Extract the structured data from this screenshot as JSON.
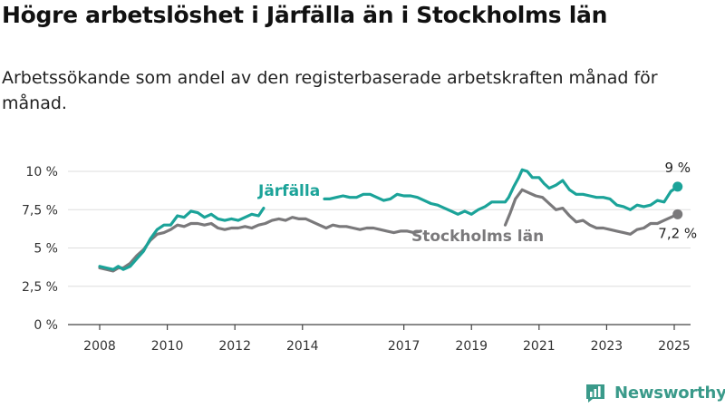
{
  "header": {
    "title": "Högre arbetslöshet i Järfälla än i Stockholms län",
    "subtitle": "Arbetssökande som andel av den registerbaserade arbetskraften månad för månad."
  },
  "brand": {
    "name": "Newsworthy"
  },
  "colors": {
    "jarfalla": "#1ba399",
    "stockholm": "#7a797b",
    "axis": "#444444",
    "grid": "#dddddd",
    "brand": "#3a9a8a"
  },
  "chart_data": {
    "type": "line",
    "title": "Högre arbetslöshet i Järfälla än i Stockholms län",
    "xlabel": "",
    "ylabel": "",
    "ylim": [
      0,
      10
    ],
    "xlim": [
      2007.5,
      2025.75
    ],
    "grid": true,
    "legend": "inline labels",
    "y_ticks": [
      {
        "value": 0,
        "label": "0 %"
      },
      {
        "value": 2.5,
        "label": "2,5 %"
      },
      {
        "value": 5,
        "label": "5 %"
      },
      {
        "value": 7.5,
        "label": "7,5 %"
      },
      {
        "value": 10,
        "label": "10 %"
      }
    ],
    "x_ticks": [
      {
        "value": 2008,
        "label": "2008"
      },
      {
        "value": 2010,
        "label": "2010"
      },
      {
        "value": 2012,
        "label": "2012"
      },
      {
        "value": 2014,
        "label": "2014"
      },
      {
        "value": 2017,
        "label": "2017"
      },
      {
        "value": 2019,
        "label": "2019"
      },
      {
        "value": 2021,
        "label": "2021"
      },
      {
        "value": 2023,
        "label": "2023"
      },
      {
        "value": 2025,
        "label": "2025"
      }
    ],
    "series": [
      {
        "name": "Järfälla",
        "color": "#1ba399",
        "end_label": "9 %",
        "segments": [
          [
            [
              2008.0,
              3.8
            ],
            [
              2008.2,
              3.7
            ],
            [
              2008.4,
              3.6
            ],
            [
              2008.55,
              3.8
            ],
            [
              2008.7,
              3.6
            ],
            [
              2008.9,
              3.8
            ],
            [
              2009.1,
              4.3
            ],
            [
              2009.3,
              4.8
            ],
            [
              2009.5,
              5.6
            ],
            [
              2009.7,
              6.2
            ],
            [
              2009.9,
              6.5
            ],
            [
              2010.1,
              6.5
            ],
            [
              2010.3,
              7.1
            ],
            [
              2010.5,
              7.0
            ],
            [
              2010.7,
              7.4
            ],
            [
              2010.9,
              7.3
            ],
            [
              2011.1,
              7.0
            ],
            [
              2011.3,
              7.2
            ],
            [
              2011.5,
              6.9
            ],
            [
              2011.7,
              6.8
            ],
            [
              2011.9,
              6.9
            ],
            [
              2012.1,
              6.8
            ],
            [
              2012.3,
              7.0
            ],
            [
              2012.5,
              7.2
            ],
            [
              2012.7,
              7.1
            ],
            [
              2012.85,
              7.6
            ]
          ],
          [
            [
              2014.65,
              8.2
            ],
            [
              2014.8,
              8.2
            ],
            [
              2015.0,
              8.3
            ],
            [
              2015.2,
              8.4
            ],
            [
              2015.4,
              8.3
            ],
            [
              2015.6,
              8.3
            ],
            [
              2015.8,
              8.5
            ],
            [
              2016.0,
              8.5
            ],
            [
              2016.2,
              8.3
            ],
            [
              2016.4,
              8.1
            ],
            [
              2016.6,
              8.2
            ],
            [
              2016.8,
              8.5
            ],
            [
              2017.0,
              8.4
            ],
            [
              2017.2,
              8.4
            ],
            [
              2017.4,
              8.3
            ],
            [
              2017.6,
              8.1
            ],
            [
              2017.8,
              7.9
            ],
            [
              2018.0,
              7.8
            ],
            [
              2018.2,
              7.6
            ],
            [
              2018.4,
              7.4
            ],
            [
              2018.6,
              7.2
            ],
            [
              2018.8,
              7.4
            ],
            [
              2019.0,
              7.2
            ],
            [
              2019.2,
              7.5
            ],
            [
              2019.4,
              7.7
            ],
            [
              2019.6,
              8.0
            ],
            [
              2019.8,
              8.0
            ],
            [
              2020.0,
              8.0
            ],
            [
              2020.1,
              8.3
            ],
            [
              2020.25,
              9.0
            ],
            [
              2020.4,
              9.6
            ],
            [
              2020.5,
              10.1
            ],
            [
              2020.65,
              10.0
            ],
            [
              2020.8,
              9.6
            ],
            [
              2021.0,
              9.6
            ],
            [
              2021.15,
              9.2
            ],
            [
              2021.3,
              8.9
            ],
            [
              2021.5,
              9.1
            ],
            [
              2021.7,
              9.4
            ],
            [
              2021.9,
              8.8
            ],
            [
              2022.1,
              8.5
            ],
            [
              2022.3,
              8.5
            ],
            [
              2022.5,
              8.4
            ],
            [
              2022.7,
              8.3
            ],
            [
              2022.9,
              8.3
            ],
            [
              2023.1,
              8.2
            ],
            [
              2023.3,
              7.8
            ],
            [
              2023.5,
              7.7
            ],
            [
              2023.7,
              7.5
            ],
            [
              2023.9,
              7.8
            ],
            [
              2024.1,
              7.7
            ],
            [
              2024.3,
              7.8
            ],
            [
              2024.5,
              8.1
            ],
            [
              2024.7,
              8.0
            ],
            [
              2024.9,
              8.7
            ],
            [
              2025.1,
              9.0
            ]
          ]
        ]
      },
      {
        "name": "Stockholms län",
        "color": "#7a797b",
        "end_label": "7,2 %",
        "segments": [
          [
            [
              2008.0,
              3.7
            ],
            [
              2008.2,
              3.6
            ],
            [
              2008.4,
              3.5
            ],
            [
              2008.55,
              3.7
            ],
            [
              2008.7,
              3.7
            ],
            [
              2008.9,
              4.0
            ],
            [
              2009.1,
              4.5
            ],
            [
              2009.3,
              4.9
            ],
            [
              2009.5,
              5.5
            ],
            [
              2009.7,
              5.9
            ],
            [
              2009.9,
              6.0
            ],
            [
              2010.1,
              6.2
            ],
            [
              2010.3,
              6.5
            ],
            [
              2010.5,
              6.4
            ],
            [
              2010.7,
              6.6
            ],
            [
              2010.9,
              6.6
            ],
            [
              2011.1,
              6.5
            ],
            [
              2011.3,
              6.6
            ],
            [
              2011.5,
              6.3
            ],
            [
              2011.7,
              6.2
            ],
            [
              2011.9,
              6.3
            ],
            [
              2012.1,
              6.3
            ],
            [
              2012.3,
              6.4
            ],
            [
              2012.5,
              6.3
            ],
            [
              2012.7,
              6.5
            ],
            [
              2012.9,
              6.6
            ],
            [
              2013.1,
              6.8
            ],
            [
              2013.3,
              6.9
            ],
            [
              2013.5,
              6.8
            ],
            [
              2013.7,
              7.0
            ],
            [
              2013.9,
              6.9
            ],
            [
              2014.1,
              6.9
            ],
            [
              2014.3,
              6.7
            ],
            [
              2014.5,
              6.5
            ],
            [
              2014.7,
              6.3
            ],
            [
              2014.9,
              6.5
            ],
            [
              2015.1,
              6.4
            ],
            [
              2015.3,
              6.4
            ],
            [
              2015.5,
              6.3
            ],
            [
              2015.7,
              6.2
            ],
            [
              2015.9,
              6.3
            ],
            [
              2016.1,
              6.3
            ],
            [
              2016.3,
              6.2
            ],
            [
              2016.5,
              6.1
            ],
            [
              2016.7,
              6.0
            ],
            [
              2016.9,
              6.1
            ],
            [
              2017.1,
              6.1
            ],
            [
              2017.3,
              6.0
            ],
            [
              2017.5,
              6.1
            ]
          ],
          [
            [
              2020.0,
              6.5
            ],
            [
              2020.15,
              7.3
            ],
            [
              2020.3,
              8.2
            ],
            [
              2020.5,
              8.8
            ],
            [
              2020.7,
              8.6
            ],
            [
              2020.9,
              8.4
            ],
            [
              2021.1,
              8.3
            ],
            [
              2021.3,
              7.9
            ],
            [
              2021.5,
              7.5
            ],
            [
              2021.7,
              7.6
            ],
            [
              2021.9,
              7.1
            ],
            [
              2022.1,
              6.7
            ],
            [
              2022.3,
              6.8
            ],
            [
              2022.5,
              6.5
            ],
            [
              2022.7,
              6.3
            ],
            [
              2022.9,
              6.3
            ],
            [
              2023.1,
              6.2
            ],
            [
              2023.3,
              6.1
            ],
            [
              2023.5,
              6.0
            ],
            [
              2023.7,
              5.9
            ],
            [
              2023.9,
              6.2
            ],
            [
              2024.1,
              6.3
            ],
            [
              2024.3,
              6.6
            ],
            [
              2024.5,
              6.6
            ],
            [
              2024.7,
              6.8
            ],
            [
              2024.9,
              7.0
            ],
            [
              2025.1,
              7.2
            ]
          ]
        ]
      }
    ]
  }
}
